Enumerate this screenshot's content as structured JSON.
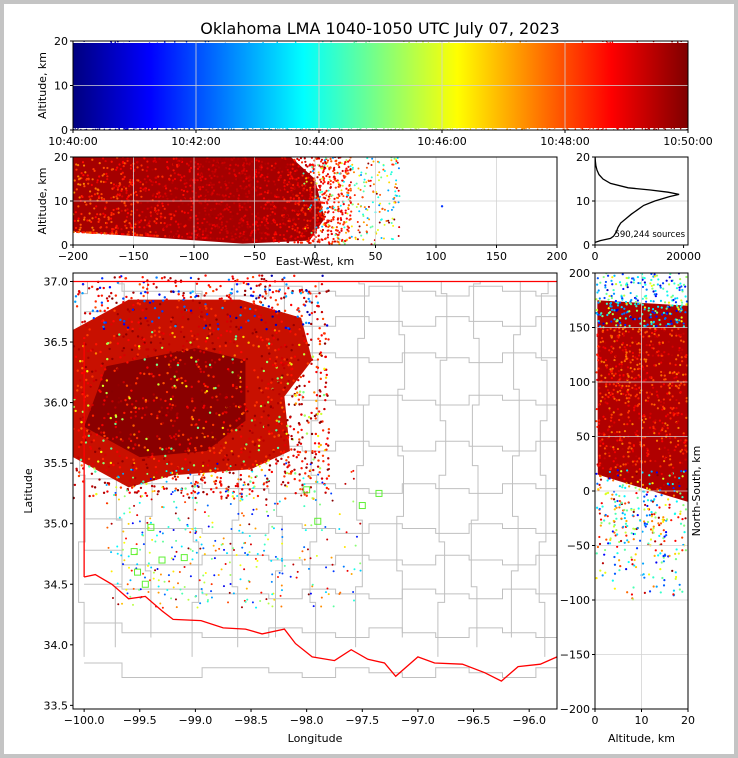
{
  "title": "Oklahoma LMA 1040-1050 UTC July 07, 2023",
  "sources_label": "590,244 sources",
  "colors": {
    "border": "#ff0000",
    "county": "#c0c0c0",
    "grid": "#d3d3d3",
    "colormap": [
      "#00007f",
      "#0000ff",
      "#007fff",
      "#00ffff",
      "#7fff7f",
      "#ffff00",
      "#ff7f00",
      "#ff0000",
      "#7f0000"
    ]
  },
  "chart_data": [
    {
      "panel": "time-altitude",
      "type": "scatter",
      "xlabel": "",
      "ylabel": "Altitude, km",
      "xlim": [
        "10:40:00",
        "10:50:00"
      ],
      "ylim": [
        0,
        20
      ],
      "xticks": [
        "10:40:00",
        "10:42:00",
        "10:44:00",
        "10:46:00",
        "10:48:00",
        "10:50:00"
      ],
      "yticks": [
        "0",
        "10",
        "20"
      ],
      "color_by": "time"
    },
    {
      "panel": "east-west-altitude",
      "type": "scatter",
      "xlabel": "East-West, km",
      "ylabel": "Altitude, km",
      "xlim": [
        -200,
        200
      ],
      "ylim": [
        0,
        20
      ],
      "xticks": [
        "−200",
        "−150",
        "−100",
        "−50",
        "0",
        "50",
        "100",
        "150",
        "200"
      ],
      "yticks": [
        "0",
        "10",
        "20"
      ]
    },
    {
      "panel": "altitude-histogram",
      "type": "line",
      "xlabel": "",
      "ylabel": "",
      "xlim": [
        0,
        21000
      ],
      "ylim": [
        0,
        20
      ],
      "xticks": [
        "0",
        "20000"
      ],
      "yticks": [
        "0",
        "10",
        "20"
      ],
      "profile": [
        [
          0.6,
          0
        ],
        [
          1.0,
          1200
        ],
        [
          1.5,
          3500
        ],
        [
          2.0,
          4200
        ],
        [
          3.0,
          4800
        ],
        [
          4.0,
          5200
        ],
        [
          5.0,
          5800
        ],
        [
          6.0,
          7000
        ],
        [
          7.0,
          8200
        ],
        [
          8.0,
          9600
        ],
        [
          9.0,
          11000
        ],
        [
          10.0,
          13500
        ],
        [
          11.0,
          16800
        ],
        [
          11.5,
          19000
        ],
        [
          12.0,
          16500
        ],
        [
          12.5,
          12500
        ],
        [
          13.0,
          7500
        ],
        [
          14.0,
          3500
        ],
        [
          15.0,
          1800
        ],
        [
          16.0,
          900
        ],
        [
          17.0,
          450
        ],
        [
          18.0,
          200
        ],
        [
          19.0,
          80
        ],
        [
          20.0,
          20
        ]
      ]
    },
    {
      "panel": "plan-view",
      "type": "scatter",
      "xlabel": "Longitude",
      "ylabel": "Latitude",
      "xlim": [
        -100.1,
        -95.75
      ],
      "ylim": [
        33.47,
        37.07
      ],
      "xticks": [
        "−100.0",
        "−99.5",
        "−99.0",
        "−98.5",
        "−98.0",
        "−97.5",
        "−97.0",
        "−96.5",
        "−96.0"
      ],
      "yticks": [
        "33.5",
        "34.0",
        "34.5",
        "35.0",
        "35.5",
        "36.0",
        "36.5",
        "37.0"
      ]
    },
    {
      "panel": "altitude-north-south",
      "type": "scatter",
      "xlabel": "Altitude, km",
      "ylabel": "North-South, km",
      "xlim": [
        0,
        20
      ],
      "ylim": [
        -200,
        200
      ],
      "xticks": [
        "0",
        "10",
        "20"
      ],
      "yticks": [
        "−200",
        "−150",
        "−100",
        "−50",
        "0",
        "50",
        "100",
        "150",
        "200"
      ]
    }
  ]
}
